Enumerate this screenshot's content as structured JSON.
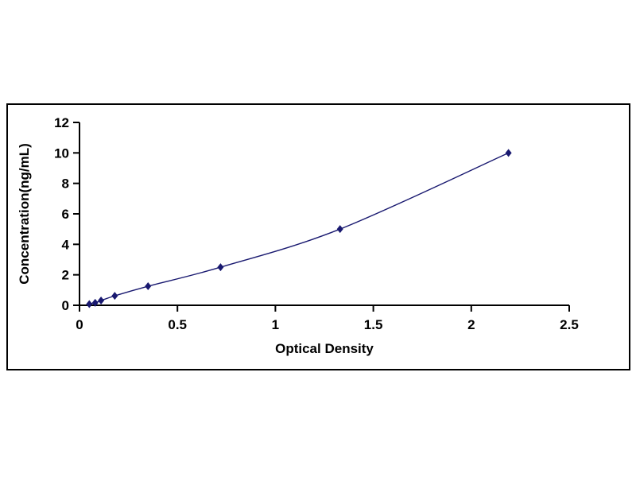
{
  "chart_data": {
    "type": "line",
    "title": "",
    "xlabel": "Optical Density",
    "ylabel": "Concentration(ng/mL)",
    "x": [
      0.05,
      0.08,
      0.11,
      0.18,
      0.35,
      0.72,
      1.33,
      2.19
    ],
    "y": [
      0.08,
      0.16,
      0.31,
      0.62,
      1.25,
      2.5,
      5,
      10
    ],
    "xlim": [
      0,
      2.5
    ],
    "ylim": [
      0,
      12
    ],
    "xticks": [
      0,
      0.5,
      1,
      1.5,
      2,
      2.5
    ],
    "xtick_labels": [
      "0",
      "0.5",
      "1",
      "1.5",
      "2",
      "2.5"
    ],
    "yticks": [
      0,
      2,
      4,
      6,
      8,
      10,
      12
    ],
    "ytick_labels": [
      "0",
      "2",
      "4",
      "6",
      "8",
      "10",
      "12"
    ],
    "grid": false,
    "legend": null,
    "marker": "diamond",
    "line_color": "#191970",
    "marker_color": "#191970",
    "axis_color": "#000000",
    "background_color": "#ffffff",
    "border_color": "#000000"
  }
}
